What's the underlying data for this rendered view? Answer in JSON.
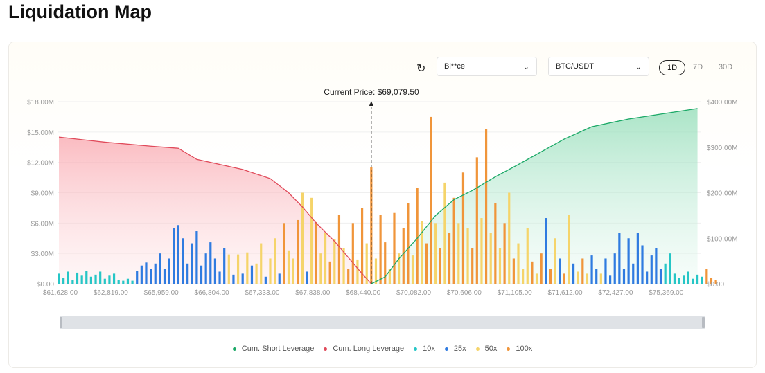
{
  "title": "Liquidation Map",
  "controls": {
    "exchange": "Bi**ce",
    "pair": "BTC/USDT",
    "periods": [
      "1D",
      "7D",
      "30D"
    ],
    "active_period": "1D"
  },
  "chart_data": {
    "type": "bar",
    "current_price_label": "Current Price: $69,079.50",
    "current_price_index": 68,
    "y_left": {
      "min": 0,
      "max": 18,
      "unit": "M",
      "ticks": [
        "$0.00",
        "$3.00M",
        "$6.00M",
        "$9.00M",
        "$12.00M",
        "$15.00M",
        "$18.00M"
      ]
    },
    "y_right": {
      "min": 0,
      "max": 400,
      "unit": "M",
      "ticks": [
        "$0.00",
        "$100.00M",
        "$200.00M",
        "$300.00M",
        "$400.00M"
      ]
    },
    "x_ticks": [
      "$61,628.00",
      "$62,819.00",
      "$65,959.00",
      "$66,804.00",
      "$67,333.00",
      "$67,838.00",
      "$68,440.00",
      "$70,082.00",
      "$70,606.00",
      "$71,105.00",
      "$71,612.00",
      "$72,427.00",
      "$75,369.00"
    ],
    "bar_values": [
      1.0,
      0.6,
      1.2,
      0.4,
      1.1,
      0.8,
      1.3,
      0.7,
      0.9,
      1.2,
      0.5,
      0.8,
      1.0,
      0.4,
      0.3,
      0.5,
      0.3,
      1.3,
      1.8,
      2.1,
      1.5,
      2.0,
      3.0,
      1.5,
      2.5,
      5.5,
      5.8,
      4.5,
      2.0,
      4.0,
      5.2,
      1.8,
      3.0,
      4.1,
      2.5,
      1.2,
      3.5,
      2.9,
      0.9,
      2.9,
      1.0,
      3.1,
      1.8,
      2.0,
      4.0,
      0.7,
      2.5,
      4.5,
      1.0,
      6.0,
      3.3,
      2.5,
      6.3,
      9.0,
      1.2,
      8.5,
      6.1,
      3.0,
      5.0,
      2.2,
      4.4,
      6.8,
      3.5,
      1.5,
      6.0,
      2.4,
      7.5,
      4.0,
      11.5,
      2.5,
      6.8,
      4.1,
      1.5,
      7.0,
      3.0,
      5.5,
      8.0,
      2.8,
      9.5,
      6.2,
      4.0,
      16.5,
      6.0,
      3.5,
      10.0,
      5.0,
      8.5,
      6.0,
      11.0,
      5.5,
      3.5,
      12.5,
      6.5,
      15.3,
      5.0,
      8.0,
      3.5,
      6.0,
      9.0,
      2.5,
      4.0,
      1.5,
      5.5,
      2.2,
      1.0,
      3.0,
      6.5,
      1.5,
      4.5,
      2.5,
      1.0,
      6.8,
      2.0,
      1.2,
      2.5,
      1.0,
      2.8,
      1.5,
      1.0,
      2.5,
      0.8,
      3.0,
      5.0,
      1.5,
      4.5,
      2.0,
      5.0,
      3.8,
      1.2,
      2.8,
      3.5,
      1.5,
      2.0,
      3.0,
      1.0,
      0.6,
      0.8,
      1.2,
      0.5,
      0.9,
      0.7,
      1.5,
      0.6,
      0.4
    ],
    "bar_leverage": "aaaaaaaaaaaaaaaaabbbbbbbbbbbbbbbbbbbbcbcbcbccbccbdccdcbcdccdcdcddcdcdcddcdcddcdcddcdcddcdcddcdcdcdcdcccdcdbdcbdcbcdcbbcbbbbbbbbbbbbbaaaaaaaaa",
    "leverage_colors": {
      "a": "#26c6c6",
      "b": "#2f7be0",
      "c": "#f5d46a",
      "d": "#f0953a"
    },
    "cum_long": [
      [
        0,
        14.5
      ],
      [
        10,
        14.0
      ],
      [
        20,
        13.6
      ],
      [
        26,
        13.4
      ],
      [
        30,
        12.3
      ],
      [
        40,
        11.3
      ],
      [
        46,
        10.4
      ],
      [
        50,
        9.0
      ],
      [
        53,
        7.6
      ],
      [
        56,
        6.0
      ],
      [
        60,
        4.2
      ],
      [
        63,
        2.6
      ],
      [
        66,
        1.0
      ],
      [
        68,
        0
      ]
    ],
    "cum_short": [
      [
        68,
        0
      ],
      [
        71,
        15
      ],
      [
        74,
        55
      ],
      [
        78,
        100
      ],
      [
        82,
        150
      ],
      [
        86,
        185
      ],
      [
        90,
        205
      ],
      [
        95,
        235
      ],
      [
        100,
        262
      ],
      [
        105,
        290
      ],
      [
        110,
        318
      ],
      [
        116,
        345
      ],
      [
        124,
        362
      ],
      [
        139,
        385
      ]
    ],
    "legend": [
      {
        "label": "Cum. Short Leverage",
        "color": "#1aa866"
      },
      {
        "label": "Cum. Long Leverage",
        "color": "#e04a5a"
      },
      {
        "label": "10x",
        "color": "#26c6c6"
      },
      {
        "label": "25x",
        "color": "#2f7be0"
      },
      {
        "label": "50x",
        "color": "#f5d46a"
      },
      {
        "label": "100x",
        "color": "#f0953a"
      }
    ]
  }
}
